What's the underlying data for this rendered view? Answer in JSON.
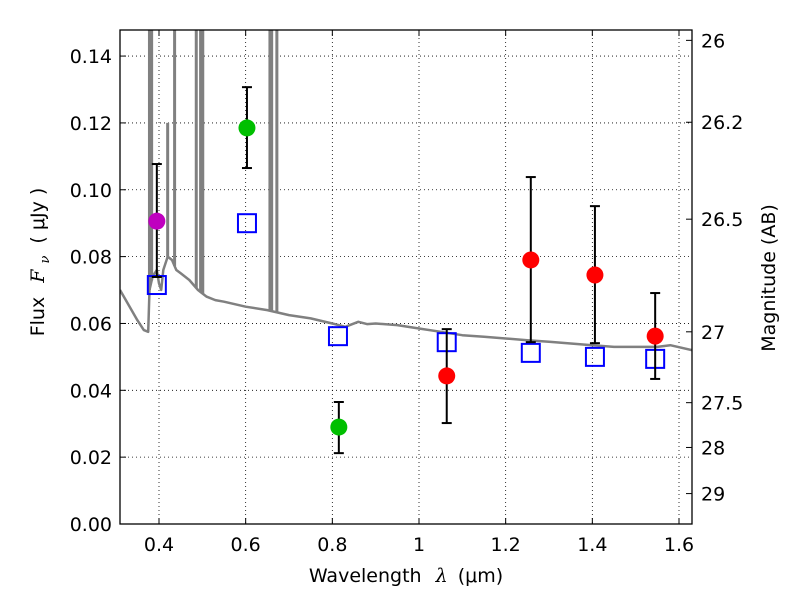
{
  "chart_data": {
    "type": "scatter",
    "title": "",
    "xlabel": "Wavelength",
    "xlabel_symbol": "λ",
    "xlabel_unit": "(μm)",
    "ylabel": "Flux",
    "ylabel_symbol": "F",
    "ylabel_subscript": "ν",
    "ylabel_unit": "( μJy )",
    "y2label": "Magnitude (AB)",
    "xlim": [
      0.31,
      1.63
    ],
    "ylim": [
      0.0,
      0.1478
    ],
    "grid": true,
    "legend": "none",
    "x_ticks": [
      {
        "value": 0.4,
        "label": "0.4"
      },
      {
        "value": 0.6,
        "label": "0.6"
      },
      {
        "value": 0.8,
        "label": "0.8"
      },
      {
        "value": 1.0,
        "label": "1"
      },
      {
        "value": 1.2,
        "label": "1.2"
      },
      {
        "value": 1.4,
        "label": "1.4"
      },
      {
        "value": 1.6,
        "label": "1.6"
      }
    ],
    "y_ticks": [
      {
        "value": 0.0,
        "label": "0.00"
      },
      {
        "value": 0.02,
        "label": "0.02"
      },
      {
        "value": 0.04,
        "label": "0.04"
      },
      {
        "value": 0.06,
        "label": "0.06"
      },
      {
        "value": 0.08,
        "label": "0.08"
      },
      {
        "value": 0.1,
        "label": "0.10"
      },
      {
        "value": 0.12,
        "label": "0.12"
      },
      {
        "value": 0.14,
        "label": "0.14"
      }
    ],
    "y2_ticks": [
      {
        "flux": 0.1447,
        "label": "26"
      },
      {
        "flux": 0.1202,
        "label": "26.2"
      },
      {
        "flux": 0.0912,
        "label": "26.5"
      },
      {
        "flux": 0.0575,
        "label": "27"
      },
      {
        "flux": 0.0363,
        "label": "27.5"
      },
      {
        "flux": 0.0229,
        "label": "28"
      },
      {
        "flux": 0.0091,
        "label": "29"
      }
    ],
    "series": [
      {
        "name": "model-spectrum",
        "kind": "line",
        "color": "#808080",
        "points": [
          [
            0.31,
            0.07
          ],
          [
            0.33,
            0.0655
          ],
          [
            0.35,
            0.061
          ],
          [
            0.365,
            0.058
          ],
          [
            0.375,
            0.0575
          ],
          [
            0.378,
            0.07
          ],
          [
            0.385,
            0.074
          ],
          [
            0.395,
            0.076
          ],
          [
            0.4,
            0.072
          ],
          [
            0.405,
            0.07
          ],
          [
            0.41,
            0.076
          ],
          [
            0.42,
            0.08
          ],
          [
            0.43,
            0.079
          ],
          [
            0.44,
            0.076
          ],
          [
            0.45,
            0.075
          ],
          [
            0.47,
            0.073
          ],
          [
            0.49,
            0.07
          ],
          [
            0.5,
            0.069
          ],
          [
            0.51,
            0.068
          ],
          [
            0.53,
            0.067
          ],
          [
            0.55,
            0.0665
          ],
          [
            0.6,
            0.065
          ],
          [
            0.65,
            0.064
          ],
          [
            0.7,
            0.0625
          ],
          [
            0.75,
            0.0615
          ],
          [
            0.8,
            0.06
          ],
          [
            0.83,
            0.059
          ],
          [
            0.86,
            0.0605
          ],
          [
            0.88,
            0.0598
          ],
          [
            0.9,
            0.06
          ],
          [
            0.95,
            0.0595
          ],
          [
            1.0,
            0.0585
          ],
          [
            1.05,
            0.0575
          ],
          [
            1.1,
            0.0565
          ],
          [
            1.15,
            0.056
          ],
          [
            1.2,
            0.0555
          ],
          [
            1.25,
            0.055
          ],
          [
            1.3,
            0.0545
          ],
          [
            1.35,
            0.054
          ],
          [
            1.4,
            0.0535
          ],
          [
            1.45,
            0.053
          ],
          [
            1.5,
            0.053
          ],
          [
            1.55,
            0.053
          ],
          [
            1.58,
            0.0535
          ],
          [
            1.63,
            0.052
          ]
        ],
        "emission_lines": [
          {
            "x": 0.378,
            "peak": 0.1478
          },
          {
            "x": 0.383,
            "peak": 0.1478
          },
          {
            "x": 0.42,
            "peak": 0.12
          },
          {
            "x": 0.436,
            "peak": 0.1478
          },
          {
            "x": 0.486,
            "peak": 0.1478
          },
          {
            "x": 0.496,
            "peak": 0.1478
          },
          {
            "x": 0.501,
            "peak": 0.1478
          },
          {
            "x": 0.656,
            "peak": 0.1478
          },
          {
            "x": 0.66,
            "peak": 0.1478
          },
          {
            "x": 0.672,
            "peak": 0.1478
          }
        ]
      },
      {
        "name": "model-photometry",
        "kind": "open-square",
        "color": "#0000ff",
        "points": [
          {
            "x": 0.395,
            "y": 0.0715
          },
          {
            "x": 0.603,
            "y": 0.09
          },
          {
            "x": 0.813,
            "y": 0.0562
          },
          {
            "x": 1.064,
            "y": 0.0544
          },
          {
            "x": 1.258,
            "y": 0.0512
          },
          {
            "x": 1.406,
            "y": 0.05
          },
          {
            "x": 1.545,
            "y": 0.0494
          }
        ]
      },
      {
        "name": "observed-photometry",
        "kind": "filled-circle-errorbar",
        "points": [
          {
            "x": 0.395,
            "y": 0.0906,
            "err_low": 0.0739,
            "err_high": 0.1077,
            "color": "#bf00bf"
          },
          {
            "x": 0.603,
            "y": 0.1185,
            "err_low": 0.1065,
            "err_high": 0.1307,
            "color": "#00bf00"
          },
          {
            "x": 0.815,
            "y": 0.029,
            "err_low": 0.0212,
            "err_high": 0.0365,
            "color": "#00bf00"
          },
          {
            "x": 1.064,
            "y": 0.0443,
            "err_low": 0.0302,
            "err_high": 0.0583,
            "color": "#ff0000"
          },
          {
            "x": 1.258,
            "y": 0.079,
            "err_low": 0.0544,
            "err_high": 0.1038,
            "color": "#ff0000"
          },
          {
            "x": 1.406,
            "y": 0.0745,
            "err_low": 0.0541,
            "err_high": 0.0951,
            "color": "#ff0000"
          },
          {
            "x": 1.545,
            "y": 0.0562,
            "err_low": 0.0434,
            "err_high": 0.0691,
            "color": "#ff0000"
          }
        ]
      }
    ]
  }
}
